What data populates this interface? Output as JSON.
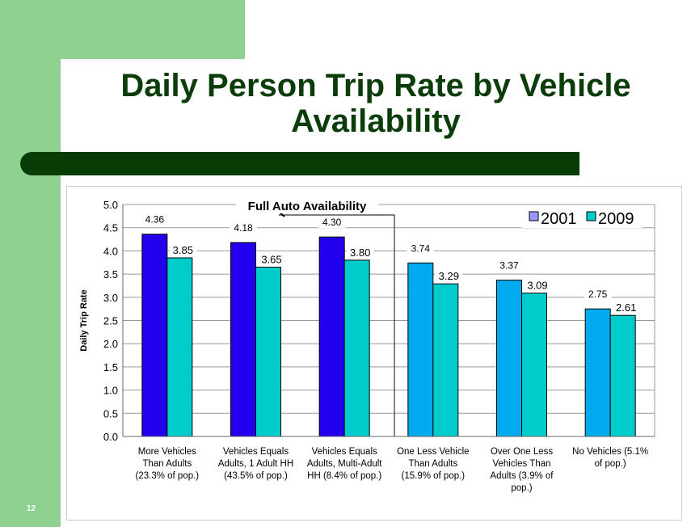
{
  "slide": {
    "title": "Daily Person Trip Rate by Vehicle Availability",
    "page_number": "12"
  },
  "colors": {
    "green_accent": "#8fd18f",
    "dark_green": "#063d06",
    "bar_2001_full": "#2200ee",
    "bar_2001_other": "#00aaee",
    "bar_2009": "#00cccc",
    "legend_2001": "#9999ff"
  },
  "chart_data": {
    "type": "bar",
    "title": "",
    "annotation": "Full Auto Availability",
    "ylabel": "Daily Trip Rate",
    "xlabel": "",
    "ylim": [
      0,
      5
    ],
    "yticks": [
      "0.0",
      "0.5",
      "1.0",
      "1.5",
      "2.0",
      "2.5",
      "3.0",
      "3.5",
      "4.0",
      "4.5",
      "5.0"
    ],
    "grid": true,
    "legend_placement": "top-right",
    "categories": [
      [
        "More Vehicles",
        "Than Adults",
        "(23.3% of pop.)"
      ],
      [
        "Vehicles Equals",
        "Adults, 1 Adult HH",
        "(43.5% of pop.)"
      ],
      [
        "Vehicles Equals",
        "Adults, Multi-Adult",
        "HH (8.4% of pop.)"
      ],
      [
        "One Less Vehicle",
        "Than Adults",
        "(15.9% of pop.)"
      ],
      [
        "Over One Less",
        "Vehicles Than",
        "Adults (3.9% of",
        "pop.)"
      ],
      [
        "No Vehicles (5.1%",
        "of pop.)"
      ]
    ],
    "series": [
      {
        "name": "2001",
        "values": [
          4.36,
          4.18,
          4.3,
          3.74,
          3.37,
          2.75
        ],
        "labels": [
          "4.36",
          "4.18",
          "4.30",
          "3.74",
          "3.37",
          "2.75"
        ]
      },
      {
        "name": "2009",
        "values": [
          3.85,
          3.65,
          3.8,
          3.29,
          3.09,
          2.61
        ],
        "labels": [
          "3.85",
          "3.65",
          "3.80",
          "3.29",
          "3.09",
          "2.61"
        ]
      }
    ]
  }
}
